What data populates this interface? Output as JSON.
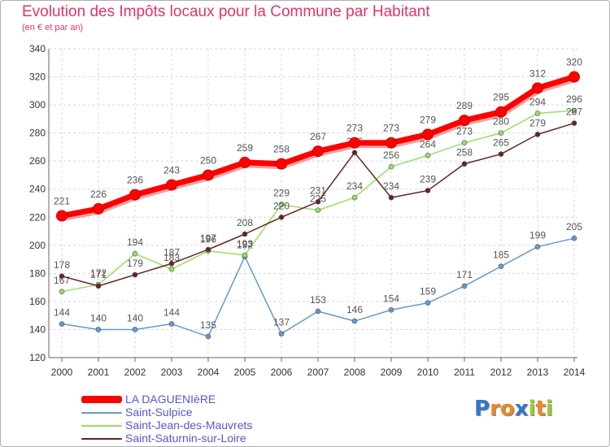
{
  "chart_data": {
    "type": "line",
    "title": "Evolution des Impôts locaux pour la Commune par Habitant",
    "subtitle": "(en € et par an)",
    "x": [
      "2000",
      "2001",
      "2002",
      "2003",
      "2004",
      "2005",
      "2006",
      "2007",
      "2008",
      "2009",
      "2010",
      "2011",
      "2012",
      "2013",
      "2014"
    ],
    "ylim": [
      120,
      340
    ],
    "yticks": [
      120,
      140,
      160,
      180,
      200,
      220,
      240,
      260,
      280,
      300,
      320,
      340
    ],
    "grid": true,
    "legend_placement": "bottom-left",
    "series": [
      {
        "name": "LA DAGUENIèRE",
        "color": "#ff0000",
        "values": [
          221,
          226,
          236,
          243,
          250,
          259,
          258,
          267,
          273,
          273,
          279,
          289,
          295,
          312,
          320
        ]
      },
      {
        "name": "Saint-Sulpice",
        "color": "#6699cc",
        "values": [
          144,
          140,
          140,
          144,
          135,
          192,
          137,
          153,
          146,
          154,
          159,
          171,
          185,
          199,
          205
        ]
      },
      {
        "name": "Saint-Jean-des-Mauvrets",
        "color": "#99dd66",
        "values": [
          167,
          172,
          194,
          183,
          196,
          193,
          229,
          225,
          234,
          256,
          264,
          273,
          280,
          294,
          296
        ]
      },
      {
        "name": "Saint-Saturnin-sur-Loire",
        "color": "#662222",
        "values": [
          178,
          171,
          179,
          187,
          197,
          208,
          220,
          231,
          266,
          234,
          239,
          258,
          265,
          279,
          287
        ]
      }
    ]
  },
  "logo": {
    "text": "Proxiti",
    "letters": [
      {
        "ch": "P",
        "color": "#3377cc"
      },
      {
        "ch": "r",
        "color": "#ee8822"
      },
      {
        "ch": "o",
        "color": "#ee8822"
      },
      {
        "ch": "x",
        "color": "#3377cc"
      },
      {
        "ch": "i",
        "color": "#99cc33"
      },
      {
        "ch": "t",
        "color": "#ee8822"
      },
      {
        "ch": "i",
        "color": "#99cc33"
      }
    ]
  }
}
